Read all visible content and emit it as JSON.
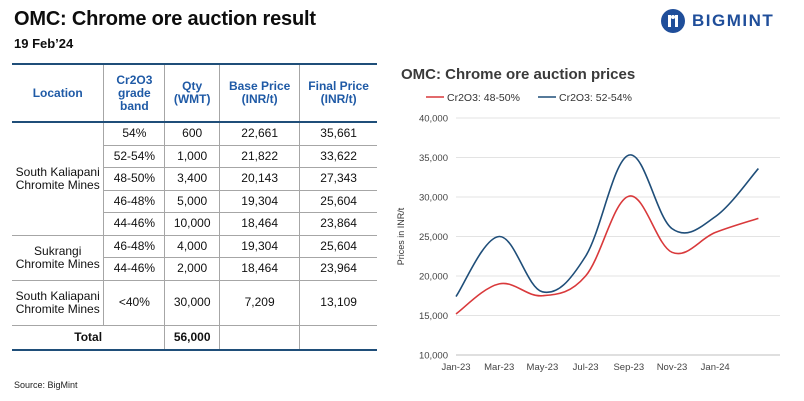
{
  "header": {
    "title": "OMC: Chrome ore auction result",
    "date": "19 Feb’24",
    "brand": "BIGMINT"
  },
  "table": {
    "headers": [
      "Location",
      "Cr2O3 grade band",
      "Qty (WMT)",
      "Base Price (INR/t)",
      "Final Price (INR/t)"
    ],
    "groups": [
      {
        "location": "South Kaliapani Chromite Mines",
        "rows": [
          {
            "grade": "54%",
            "qty": "600",
            "base": "22,661",
            "final": "35,661"
          },
          {
            "grade": "52-54%",
            "qty": "1,000",
            "base": "21,822",
            "final": "33,622"
          },
          {
            "grade": "48-50%",
            "qty": "3,400",
            "base": "20,143",
            "final": "27,343"
          },
          {
            "grade": "46-48%",
            "qty": "5,000",
            "base": "19,304",
            "final": "25,604"
          },
          {
            "grade": "44-46%",
            "qty": "10,000",
            "base": "18,464",
            "final": "23,864"
          }
        ]
      },
      {
        "location": "Sukrangi Chromite Mines",
        "rows": [
          {
            "grade": "46-48%",
            "qty": "4,000",
            "base": "19,304",
            "final": "25,604"
          },
          {
            "grade": "44-46%",
            "qty": "2,000",
            "base": "18,464",
            "final": "23,964"
          }
        ]
      },
      {
        "location": "South Kaliapani Chromite Mines",
        "rows": [
          {
            "grade": "<40%",
            "qty": "30,000",
            "base": "7,209",
            "final": "13,109"
          }
        ]
      }
    ],
    "total_label": "Total",
    "total_qty": "56,000"
  },
  "source": "Source: BigMint",
  "chart_data": {
    "type": "line",
    "title": "OMC: Chrome ore auction prices",
    "ylabel": "Prices in INR/t",
    "ylim": [
      10000,
      40000
    ],
    "yticks": [
      "10,000",
      "15,000",
      "20,000",
      "25,000",
      "30,000",
      "35,000",
      "40,000"
    ],
    "x": [
      "Jan-23",
      "Mar-23",
      "May-23",
      "Jul-23",
      "Sep-23",
      "Nov-23",
      "Jan-24",
      "Feb-24"
    ],
    "xtick_labels": [
      "Jan-23",
      "Mar-23",
      "May-23",
      "Jul-23",
      "Sep-23",
      "Nov-23",
      "Jan-24"
    ],
    "legend_position": "top-left",
    "grid": true,
    "series": [
      {
        "name": "Cr2O3: 48-50%",
        "color": "#d9393b",
        "values": [
          15200,
          19000,
          17500,
          20000,
          30100,
          23000,
          25500,
          27300
        ]
      },
      {
        "name": "Cr2O3: 52-54%",
        "color": "#1f4e79",
        "values": [
          17400,
          25000,
          18000,
          22500,
          35300,
          26000,
          27500,
          33600
        ]
      }
    ]
  }
}
